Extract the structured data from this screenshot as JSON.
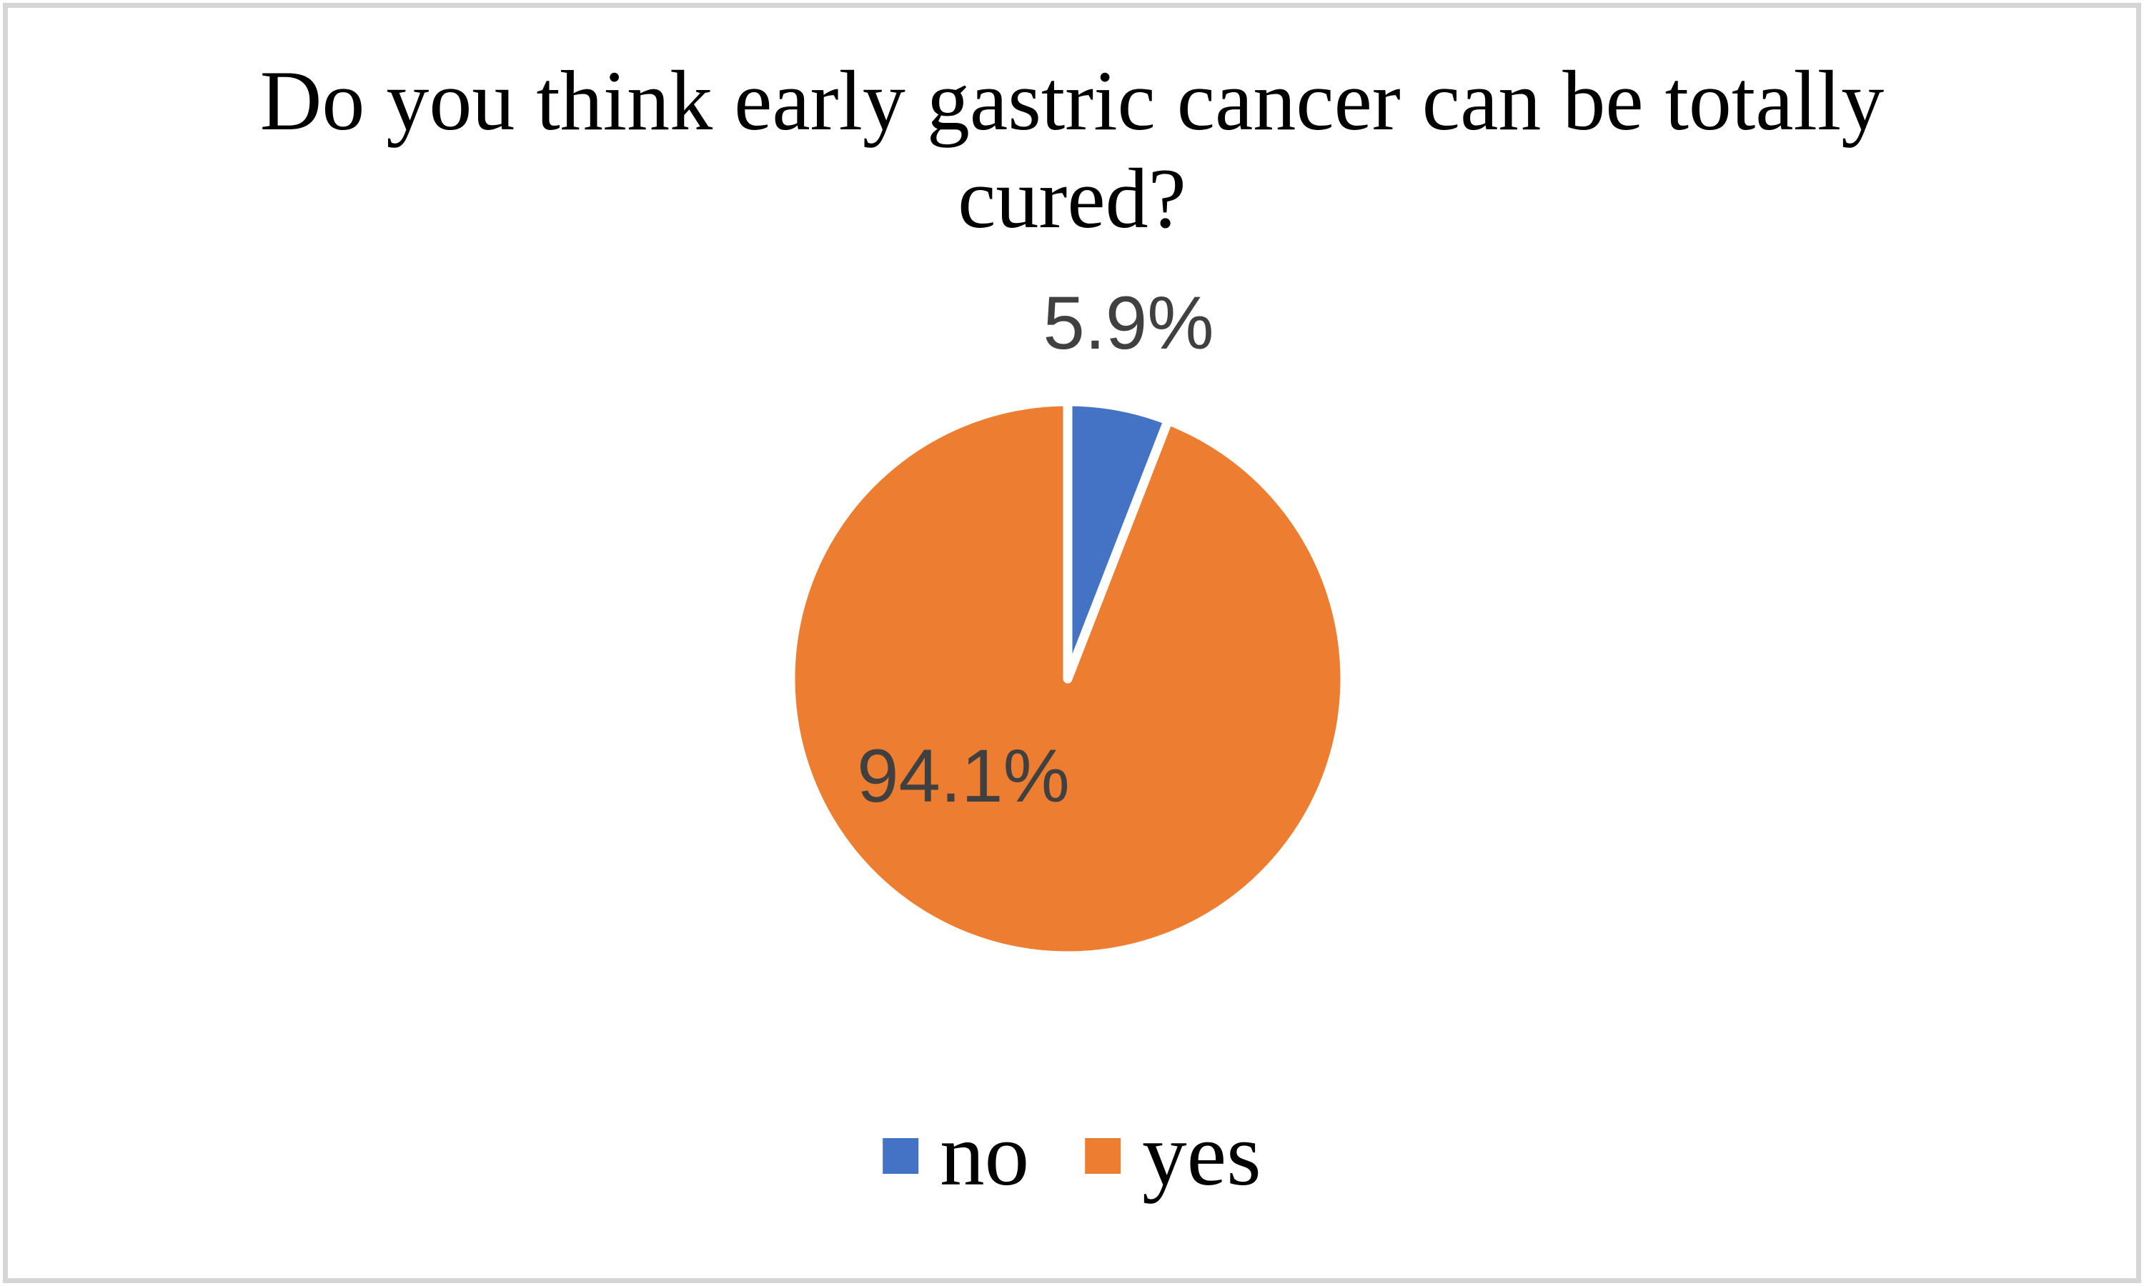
{
  "figure": {
    "background": "#ffffff",
    "border_color": "#d5d5d5"
  },
  "chart_data": {
    "type": "pie",
    "title": "Do you think early gastric cancer can be totally\ncured?",
    "title_color": "#000000",
    "slices": [
      {
        "label": "no",
        "value": 5.9,
        "display": "5.9%",
        "color": "#4472C4"
      },
      {
        "label": "yes",
        "value": 94.1,
        "display": "94.1%",
        "color": "#ED7D31"
      }
    ],
    "start_angle_deg": 0,
    "direction": "clockwise",
    "slice_gap_color": "#ffffff",
    "data_label_color": "#404040",
    "legend_position": "bottom",
    "legend_text_color": "#000000"
  }
}
